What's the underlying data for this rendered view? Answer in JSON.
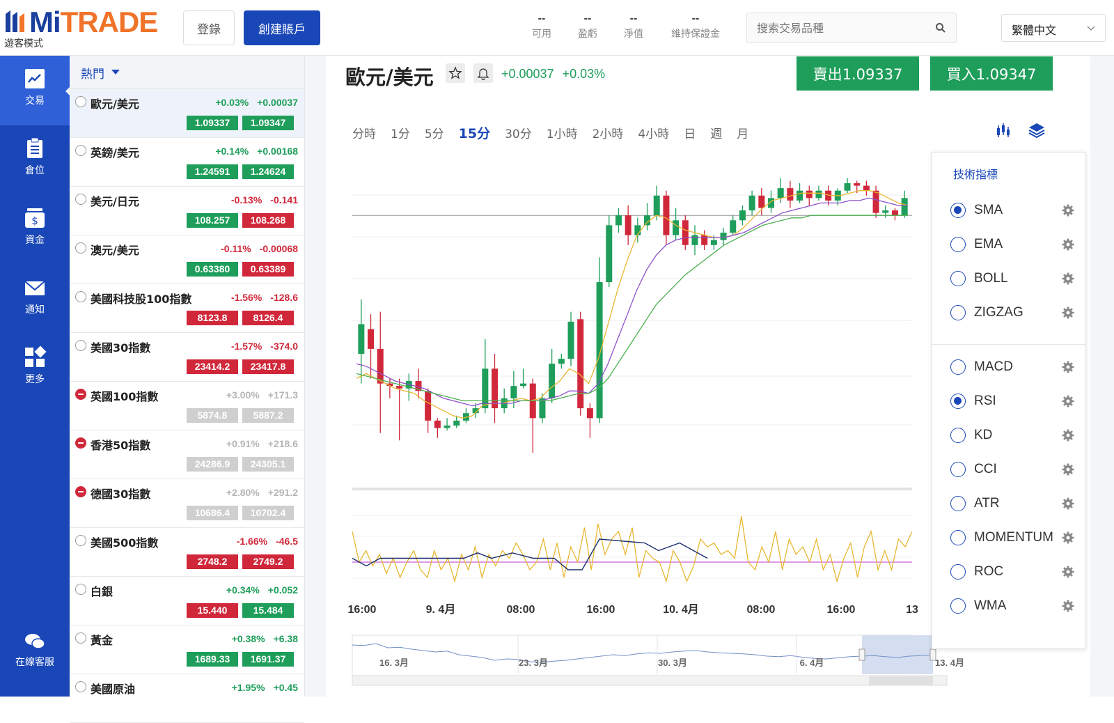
{
  "brand": {
    "mi": "Mi",
    "trade": "TRADE",
    "mode": "遊客模式"
  },
  "header": {
    "login": "登錄",
    "create_account": "創建賬戶",
    "stats": [
      {
        "value": "--",
        "label": "可用"
      },
      {
        "value": "--",
        "label": "盈虧"
      },
      {
        "value": "--",
        "label": "淨值"
      },
      {
        "value": "--",
        "label": "維持保證金"
      }
    ],
    "search_placeholder": "搜索交易品種",
    "language": "繁體中文"
  },
  "nav": [
    {
      "label": "交易",
      "icon": "chart-icon",
      "active": true
    },
    {
      "label": "倉位",
      "icon": "clipboard-icon"
    },
    {
      "label": "資金",
      "icon": "wallet-icon"
    },
    {
      "label": "通知",
      "icon": "mail-icon"
    },
    {
      "label": "更多",
      "icon": "grid-icon"
    },
    {
      "label": "在線客服",
      "icon": "chat-icon"
    }
  ],
  "product_list": {
    "filter": "熱門",
    "items": [
      {
        "name": "歐元/美元",
        "pct": "+0.03%",
        "chg": "+0.00037",
        "bid": "1.09337",
        "ask": "1.09347",
        "trend": "up",
        "bid_color": "up",
        "ask_color": "up",
        "selected": true
      },
      {
        "name": "英鎊/美元",
        "pct": "+0.14%",
        "chg": "+0.00168",
        "bid": "1.24591",
        "ask": "1.24624",
        "trend": "up",
        "bid_color": "up",
        "ask_color": "up"
      },
      {
        "name": "美元/日元",
        "pct": "-0.13%",
        "chg": "-0.141",
        "bid": "108.257",
        "ask": "108.268",
        "trend": "dn",
        "bid_color": "up",
        "ask_color": "dn"
      },
      {
        "name": "澳元/美元",
        "pct": "-0.11%",
        "chg": "-0.00068",
        "bid": "0.63380",
        "ask": "0.63389",
        "trend": "dn",
        "bid_color": "up",
        "ask_color": "dn"
      },
      {
        "name": "美國科技股100指數",
        "pct": "-1.56%",
        "chg": "-128.6",
        "bid": "8123.8",
        "ask": "8126.4",
        "trend": "dn",
        "bid_color": "dn",
        "ask_color": "dn"
      },
      {
        "name": "美國30指數",
        "pct": "-1.57%",
        "chg": "-374.0",
        "bid": "23414.2",
        "ask": "23417.8",
        "trend": "dn",
        "bid_color": "dn",
        "ask_color": "dn"
      },
      {
        "name": "英國100指數",
        "pct": "+3.00%",
        "chg": "+171.3",
        "bid": "5874.8",
        "ask": "5887.2",
        "trend": "gr",
        "bid_color": "gr",
        "ask_color": "gr",
        "closed": true
      },
      {
        "name": "香港50指數",
        "pct": "+0.91%",
        "chg": "+218.6",
        "bid": "24286.9",
        "ask": "24305.1",
        "trend": "gr",
        "bid_color": "gr",
        "ask_color": "gr",
        "closed": true
      },
      {
        "name": "德國30指數",
        "pct": "+2.80%",
        "chg": "+291.2",
        "bid": "10686.4",
        "ask": "10702.4",
        "trend": "gr",
        "bid_color": "gr",
        "ask_color": "gr",
        "closed": true
      },
      {
        "name": "美國500指數",
        "pct": "-1.66%",
        "chg": "-46.5",
        "bid": "2748.2",
        "ask": "2749.2",
        "trend": "dn",
        "bid_color": "dn",
        "ask_color": "dn"
      },
      {
        "name": "白銀",
        "pct": "+0.34%",
        "chg": "+0.052",
        "bid": "15.440",
        "ask": "15.484",
        "trend": "up",
        "bid_color": "dn",
        "ask_color": "up"
      },
      {
        "name": "黃金",
        "pct": "+0.38%",
        "chg": "+6.38",
        "bid": "1689.33",
        "ask": "1691.37",
        "trend": "up",
        "bid_color": "up",
        "ask_color": "up"
      },
      {
        "name": "美國原油",
        "pct": "+1.95%",
        "chg": "+0.45",
        "bid": "",
        "ask": "",
        "trend": "up",
        "bid_color": "up",
        "ask_color": "up"
      }
    ]
  },
  "symbol": {
    "name": "歐元/美元",
    "change": "+0.00037",
    "pct": "+0.03%",
    "sell": "賣出1.09337",
    "buy": "買入1.09347"
  },
  "timeframes": [
    "分時",
    "1分",
    "5分",
    "15分",
    "30分",
    "1小時",
    "2小時",
    "4小時",
    "日",
    "週",
    "月"
  ],
  "active_timeframe": "15分",
  "colors": {
    "up": "#1e9e5a",
    "down": "#d0283a",
    "brand": "#1a47b8",
    "sma_fast": "#e8b630",
    "sma_mid": "#8c4fc9",
    "sma_slow": "#4caf50",
    "rsi": "#e8b630",
    "rsi_signal": "#1a2f6e",
    "rsi_mid": "#c75fd6"
  },
  "indicators": {
    "title": "技術指標",
    "main": [
      {
        "name": "SMA",
        "on": true
      },
      {
        "name": "EMA",
        "on": false
      },
      {
        "name": "BOLL",
        "on": false
      },
      {
        "name": "ZIGZAG",
        "on": false
      }
    ],
    "sub": [
      {
        "name": "MACD",
        "on": false
      },
      {
        "name": "RSI",
        "on": true
      },
      {
        "name": "KD",
        "on": false
      },
      {
        "name": "CCI",
        "on": false
      },
      {
        "name": "ATR",
        "on": false
      },
      {
        "name": "MOMENTUM",
        "on": false
      },
      {
        "name": "ROC",
        "on": false
      },
      {
        "name": "WMA",
        "on": false
      }
    ]
  },
  "chart_data": {
    "type": "candlestick",
    "x_ticks": [
      "16:00",
      "9. 4月",
      "08:00",
      "16:00",
      "10. 4月",
      "08:00",
      "16:00",
      "13"
    ],
    "navigator_ticks": [
      "16. 3月",
      "23. 3月",
      "30. 3月",
      "6. 4月",
      "13. 4月"
    ],
    "indicators_shown": [
      "SMA",
      "RSI"
    ],
    "candles": [
      {
        "o": 0.4,
        "c": 0.52,
        "h": 0.62,
        "l": 0.28
      },
      {
        "o": 0.5,
        "c": 0.42,
        "h": 0.56,
        "l": 0.3
      },
      {
        "o": 0.42,
        "c": 0.28,
        "h": 0.57,
        "l": 0.08
      },
      {
        "o": 0.28,
        "c": 0.27,
        "h": 0.3,
        "l": 0.22
      },
      {
        "o": 0.27,
        "c": 0.26,
        "h": 0.3,
        "l": 0.05
      },
      {
        "o": 0.26,
        "c": 0.29,
        "h": 0.32,
        "l": 0.21
      },
      {
        "o": 0.29,
        "c": 0.25,
        "h": 0.34,
        "l": 0.22
      },
      {
        "o": 0.25,
        "c": 0.13,
        "h": 0.26,
        "l": 0.08
      },
      {
        "o": 0.13,
        "c": 0.1,
        "h": 0.14,
        "l": 0.06
      },
      {
        "o": 0.1,
        "c": 0.11,
        "h": 0.14,
        "l": 0.09
      },
      {
        "o": 0.11,
        "c": 0.13,
        "h": 0.15,
        "l": 0.1
      },
      {
        "o": 0.13,
        "c": 0.16,
        "h": 0.18,
        "l": 0.12
      },
      {
        "o": 0.16,
        "c": 0.18,
        "h": 0.2,
        "l": 0.14
      },
      {
        "o": 0.18,
        "c": 0.34,
        "h": 0.46,
        "l": 0.16
      },
      {
        "o": 0.34,
        "c": 0.18,
        "h": 0.4,
        "l": 0.12
      },
      {
        "o": 0.18,
        "c": 0.22,
        "h": 0.26,
        "l": 0.16
      },
      {
        "o": 0.22,
        "c": 0.27,
        "h": 0.33,
        "l": 0.18
      },
      {
        "o": 0.27,
        "c": 0.28,
        "h": 0.34,
        "l": 0.26
      },
      {
        "o": 0.28,
        "c": 0.14,
        "h": 0.3,
        "l": 0.0
      },
      {
        "o": 0.14,
        "c": 0.22,
        "h": 0.24,
        "l": 0.12
      },
      {
        "o": 0.22,
        "c": 0.36,
        "h": 0.42,
        "l": 0.2
      },
      {
        "o": 0.36,
        "c": 0.38,
        "h": 0.4,
        "l": 0.34
      },
      {
        "o": 0.38,
        "c": 0.53,
        "h": 0.57,
        "l": 0.35
      },
      {
        "o": 0.54,
        "c": 0.18,
        "h": 0.57,
        "l": 0.15
      },
      {
        "o": 0.18,
        "c": 0.14,
        "h": 0.2,
        "l": 0.06
      },
      {
        "o": 0.14,
        "c": 0.69,
        "h": 0.79,
        "l": 0.12
      },
      {
        "o": 0.69,
        "c": 0.92,
        "h": 0.96,
        "l": 0.67
      },
      {
        "o": 0.92,
        "c": 0.96,
        "h": 0.99,
        "l": 0.89
      },
      {
        "o": 0.96,
        "c": 0.88,
        "h": 1.0,
        "l": 0.84
      },
      {
        "o": 0.88,
        "c": 0.92,
        "h": 0.95,
        "l": 0.85
      },
      {
        "o": 0.92,
        "c": 0.96,
        "h": 1.01,
        "l": 0.9
      },
      {
        "o": 0.96,
        "c": 1.04,
        "h": 1.08,
        "l": 0.94
      },
      {
        "o": 1.04,
        "c": 0.88,
        "h": 1.06,
        "l": 0.84
      },
      {
        "o": 0.88,
        "c": 0.94,
        "h": 0.99,
        "l": 0.86
      },
      {
        "o": 0.94,
        "c": 0.84,
        "h": 0.96,
        "l": 0.82
      },
      {
        "o": 0.84,
        "c": 0.88,
        "h": 0.92,
        "l": 0.8
      },
      {
        "o": 0.88,
        "c": 0.84,
        "h": 0.9,
        "l": 0.82
      },
      {
        "o": 0.84,
        "c": 0.86,
        "h": 0.88,
        "l": 0.82
      },
      {
        "o": 0.86,
        "c": 0.89,
        "h": 0.91,
        "l": 0.84
      },
      {
        "o": 0.89,
        "c": 0.94,
        "h": 0.96,
        "l": 0.88
      },
      {
        "o": 0.94,
        "c": 0.98,
        "h": 1.0,
        "l": 0.92
      },
      {
        "o": 0.98,
        "c": 1.04,
        "h": 1.06,
        "l": 0.96
      },
      {
        "o": 1.04,
        "c": 0.99,
        "h": 1.07,
        "l": 0.96
      },
      {
        "o": 0.99,
        "c": 1.03,
        "h": 1.06,
        "l": 0.97
      },
      {
        "o": 1.03,
        "c": 1.07,
        "h": 1.11,
        "l": 1.01
      },
      {
        "o": 1.07,
        "c": 1.02,
        "h": 1.1,
        "l": 0.99
      },
      {
        "o": 1.02,
        "c": 1.06,
        "h": 1.09,
        "l": 1.01
      },
      {
        "o": 1.06,
        "c": 1.03,
        "h": 1.08,
        "l": 1.0
      },
      {
        "o": 1.03,
        "c": 1.06,
        "h": 1.08,
        "l": 1.02
      },
      {
        "o": 1.06,
        "c": 1.02,
        "h": 1.08,
        "l": 1.0
      },
      {
        "o": 1.02,
        "c": 1.06,
        "h": 1.07,
        "l": 1.0
      },
      {
        "o": 1.06,
        "c": 1.09,
        "h": 1.11,
        "l": 1.05
      },
      {
        "o": 1.09,
        "c": 1.08,
        "h": 1.1,
        "l": 1.05
      },
      {
        "o": 1.08,
        "c": 1.06,
        "h": 1.1,
        "l": 1.04
      },
      {
        "o": 1.06,
        "c": 0.97,
        "h": 1.08,
        "l": 0.95
      },
      {
        "o": 0.97,
        "c": 0.98,
        "h": 1.0,
        "l": 0.95
      },
      {
        "o": 0.98,
        "c": 0.96,
        "h": 0.99,
        "l": 0.94
      },
      {
        "o": 0.96,
        "c": 1.03,
        "h": 1.06,
        "l": 0.95
      }
    ],
    "sma_fast": [
      0.3,
      0.32,
      0.3,
      0.28,
      0.26,
      0.25,
      0.24,
      0.21,
      0.19,
      0.17,
      0.15,
      0.14,
      0.15,
      0.19,
      0.2,
      0.2,
      0.21,
      0.22,
      0.21,
      0.22,
      0.26,
      0.29,
      0.34,
      0.32,
      0.28,
      0.38,
      0.52,
      0.66,
      0.78,
      0.88,
      0.93,
      0.96,
      0.95,
      0.92,
      0.9,
      0.89,
      0.88,
      0.87,
      0.87,
      0.88,
      0.91,
      0.95,
      0.99,
      1.02,
      1.03,
      1.04,
      1.05,
      1.05,
      1.05,
      1.04,
      1.04,
      1.05,
      1.06,
      1.06,
      1.05,
      1.03,
      1.01,
      1.0
    ],
    "sma_mid": [
      0.36,
      0.35,
      0.33,
      0.31,
      0.29,
      0.28,
      0.27,
      0.26,
      0.24,
      0.22,
      0.21,
      0.2,
      0.19,
      0.2,
      0.2,
      0.2,
      0.2,
      0.21,
      0.21,
      0.21,
      0.22,
      0.23,
      0.25,
      0.25,
      0.24,
      0.28,
      0.36,
      0.46,
      0.56,
      0.66,
      0.74,
      0.8,
      0.84,
      0.86,
      0.87,
      0.87,
      0.87,
      0.87,
      0.87,
      0.88,
      0.89,
      0.91,
      0.93,
      0.95,
      0.97,
      0.98,
      0.99,
      1.0,
      1.01,
      1.01,
      1.01,
      1.02,
      1.02,
      1.03,
      1.02,
      1.01,
      1.0,
      1.0
    ],
    "sma_slow": [
      0.32,
      0.31,
      0.3,
      0.29,
      0.28,
      0.27,
      0.26,
      0.25,
      0.24,
      0.23,
      0.22,
      0.21,
      0.21,
      0.21,
      0.21,
      0.21,
      0.21,
      0.21,
      0.21,
      0.21,
      0.21,
      0.22,
      0.23,
      0.24,
      0.24,
      0.26,
      0.3,
      0.36,
      0.42,
      0.48,
      0.54,
      0.6,
      0.64,
      0.68,
      0.72,
      0.75,
      0.78,
      0.81,
      0.84,
      0.86,
      0.88,
      0.9,
      0.92,
      0.93,
      0.94,
      0.95,
      0.95,
      0.96,
      0.96,
      0.96,
      0.96,
      0.96,
      0.96,
      0.96,
      0.96,
      0.96,
      0.96,
      0.96
    ],
    "rsi": [
      0.7,
      0.3,
      0.45,
      0.25,
      0.4,
      0.15,
      0.35,
      0.1,
      0.3,
      0.45,
      0.2,
      0.1,
      0.45,
      0.2,
      0.35,
      0.05,
      0.4,
      0.2,
      0.5,
      0.1,
      0.4,
      0.25,
      0.45,
      0.35,
      0.55,
      0.4,
      0.2,
      0.3,
      0.6,
      0.2,
      0.55,
      0.1,
      0.5,
      0.3,
      0.75,
      0.2,
      0.8,
      0.4,
      0.6,
      0.7,
      0.4,
      0.75,
      0.1,
      0.45,
      0.35,
      0.3,
      0.05,
      0.45,
      0.3,
      0.05,
      0.25,
      0.6,
      0.5,
      0.55,
      0.4,
      0.45,
      0.35,
      0.9,
      0.3,
      0.2,
      0.5,
      0.3,
      0.7,
      0.2,
      0.6,
      0.4,
      0.5,
      0.3,
      0.6,
      0.2,
      0.4,
      0.05,
      0.35,
      0.55,
      0.1,
      0.5,
      0.7,
      0.2,
      0.45,
      0.2,
      0.6,
      0.5,
      0.7
    ],
    "navigator": [
      0.8,
      0.78,
      0.85,
      0.7,
      0.72,
      0.65,
      0.6,
      0.55,
      0.58,
      0.45,
      0.4,
      0.35,
      0.25,
      0.3,
      0.28,
      0.2,
      0.18,
      0.22,
      0.25,
      0.3,
      0.35,
      0.4,
      0.45,
      0.42,
      0.48,
      0.52,
      0.5,
      0.55,
      0.58,
      0.6,
      0.55,
      0.52,
      0.5,
      0.48,
      0.45,
      0.4,
      0.38,
      0.42,
      0.36,
      0.32,
      0.3,
      0.34,
      0.38,
      0.4,
      0.42,
      0.38,
      0.35,
      0.4,
      0.42,
      0.45
    ]
  }
}
